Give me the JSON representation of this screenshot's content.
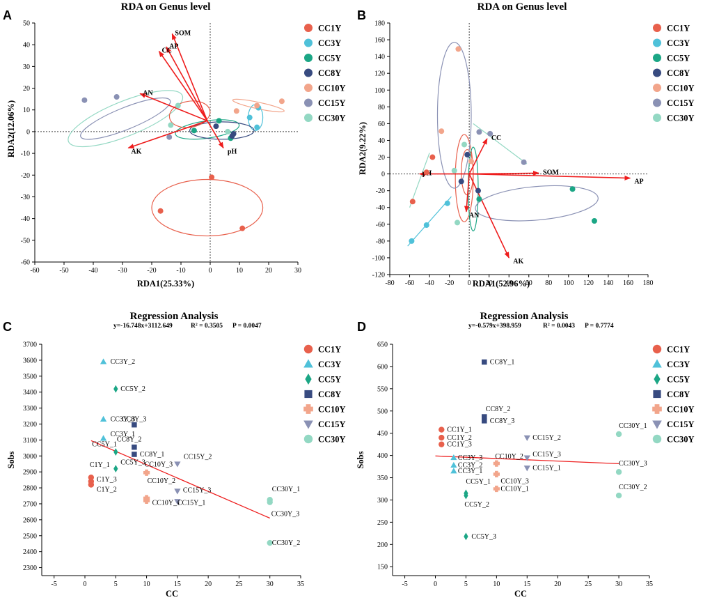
{
  "colors": {
    "CC1Y": "#e8604c",
    "CC3Y": "#4fc1d9",
    "CC5Y": "#1ba685",
    "CC8Y": "#384b80",
    "CC10Y": "#f2a58b",
    "CC15Y": "#8a91b4",
    "CC30Y": "#93d8c3",
    "arrow": "#ee1c1c",
    "fit": "#ee2222"
  },
  "groups": [
    "CC1Y",
    "CC3Y",
    "CC5Y",
    "CC8Y",
    "CC10Y",
    "CC15Y",
    "CC30Y"
  ],
  "chart_data": [
    {
      "panel": "A",
      "type": "scatter",
      "title": "RDA on Genus level",
      "xlabel": "RDA1(25.33%)",
      "ylabel": "RDA2(12.06%)",
      "xlim": [
        -60,
        30
      ],
      "ylim": [
        -60,
        50
      ],
      "xticks": [
        -60,
        -50,
        -40,
        -30,
        -20,
        -10,
        0,
        10,
        20,
        30
      ],
      "yticks": [
        -60,
        -50,
        -40,
        -30,
        -20,
        -10,
        0,
        10,
        20,
        30,
        40,
        50
      ],
      "points": [
        {
          "group": "CC1Y",
          "x": 0.5,
          "y": -21
        },
        {
          "group": "CC1Y",
          "x": -17,
          "y": -36.5
        },
        {
          "group": "CC1Y",
          "x": 11,
          "y": -44.5
        },
        {
          "group": "CC3Y",
          "x": 13.5,
          "y": 6.5
        },
        {
          "group": "CC3Y",
          "x": 16.5,
          "y": 11
        },
        {
          "group": "CC3Y",
          "x": 16,
          "y": 2
        },
        {
          "group": "CC5Y",
          "x": -5.5,
          "y": 0.5
        },
        {
          "group": "CC5Y",
          "x": 3,
          "y": 5
        },
        {
          "group": "CC5Y",
          "x": 7,
          "y": -3
        },
        {
          "group": "CC8Y",
          "x": 2,
          "y": 2.5
        },
        {
          "group": "CC8Y",
          "x": 8,
          "y": -1
        },
        {
          "group": "CC8Y",
          "x": 7.5,
          "y": -2
        },
        {
          "group": "CC10Y",
          "x": 9,
          "y": 9.5
        },
        {
          "group": "CC10Y",
          "x": 16,
          "y": 12
        },
        {
          "group": "CC10Y",
          "x": 24.5,
          "y": 14
        },
        {
          "group": "CC15Y",
          "x": -43,
          "y": 14.5
        },
        {
          "group": "CC15Y",
          "x": -32,
          "y": 16
        },
        {
          "group": "CC15Y",
          "x": -14,
          "y": -2.5
        },
        {
          "group": "CC30Y",
          "x": -11,
          "y": 12
        },
        {
          "group": "CC30Y",
          "x": -13.5,
          "y": 3
        },
        {
          "group": "CC30Y",
          "x": 6,
          "y": 0
        }
      ],
      "ellipses": [
        {
          "group": "CC1Y",
          "cx": -1,
          "cy": -35,
          "rx": 19,
          "ry": 13,
          "angle": 0
        },
        {
          "group": "CC3Y",
          "cx": 15.5,
          "cy": 6.5,
          "rx": 2.5,
          "ry": 6,
          "angle": 0
        },
        {
          "group": "CC5Y",
          "cx": -1,
          "cy": 1,
          "rx": 11,
          "ry": 4,
          "angle": -8
        },
        {
          "group": "CC8Y",
          "cx": 4,
          "cy": 0.5,
          "rx": 11,
          "ry": 4,
          "angle": 0
        },
        {
          "group": "CC10Y",
          "cx": 16.5,
          "cy": 12,
          "rx": 9,
          "ry": 1.5,
          "angle": 12
        },
        {
          "group": "CC15Y",
          "cx": -29,
          "cy": 6,
          "rx": 16.5,
          "ry": 5,
          "angle": -22
        },
        {
          "group": "CC30Y",
          "cx": -29,
          "cy": 6,
          "rx": 21,
          "ry": 8,
          "angle": -22
        },
        {
          "group": "CC1Y",
          "cx": -7,
          "cy": 8,
          "rx": 7,
          "ry": 6,
          "angle": -10
        }
      ],
      "arrows": [
        {
          "label": "SOM",
          "x": -13,
          "y": 45
        },
        {
          "label": "AP",
          "x": -15,
          "y": 39
        },
        {
          "label": "CC",
          "x": -17.5,
          "y": 37
        },
        {
          "label": "AN",
          "x": -24,
          "y": 17.5
        },
        {
          "label": "AK",
          "x": -28,
          "y": -7.5
        },
        {
          "label": "pH",
          "x": 4.5,
          "y": -7.5
        }
      ],
      "arrow_origin": {
        "x": -1,
        "y": 5
      }
    },
    {
      "panel": "B",
      "type": "scatter",
      "title": "RDA on Genus level",
      "xlabel": "RDA1(52.96%)",
      "ylabel": "RDA2(9.22%)",
      "xlim": [
        -80,
        180
      ],
      "ylim": [
        -120,
        180
      ],
      "xticks": [
        -80,
        -60,
        -40,
        -20,
        0,
        20,
        40,
        60,
        80,
        100,
        120,
        140,
        160,
        180
      ],
      "yticks": [
        -120,
        -100,
        -80,
        -60,
        -40,
        -20,
        0,
        20,
        40,
        60,
        80,
        100,
        120,
        140,
        160,
        180
      ],
      "points": [
        {
          "group": "CC1Y",
          "x": -37,
          "y": 20
        },
        {
          "group": "CC1Y",
          "x": -43,
          "y": 2
        },
        {
          "group": "CC1Y",
          "x": -57,
          "y": -33
        },
        {
          "group": "CC3Y",
          "x": -58,
          "y": -80
        },
        {
          "group": "CC3Y",
          "x": -43,
          "y": -61
        },
        {
          "group": "CC3Y",
          "x": -22,
          "y": -35
        },
        {
          "group": "CC5Y",
          "x": 10,
          "y": -30
        },
        {
          "group": "CC5Y",
          "x": 104,
          "y": -18
        },
        {
          "group": "CC5Y",
          "x": 126,
          "y": -56
        },
        {
          "group": "CC8Y",
          "x": -2,
          "y": 23
        },
        {
          "group": "CC8Y",
          "x": -8,
          "y": -9
        },
        {
          "group": "CC8Y",
          "x": 9,
          "y": -20
        },
        {
          "group": "CC10Y",
          "x": -11,
          "y": 149
        },
        {
          "group": "CC10Y",
          "x": -28,
          "y": 51
        },
        {
          "group": "CC10Y",
          "x": 2,
          "y": 15
        },
        {
          "group": "CC15Y",
          "x": 10,
          "y": 50
        },
        {
          "group": "CC15Y",
          "x": 21,
          "y": 48
        },
        {
          "group": "CC15Y",
          "x": 55,
          "y": 14
        },
        {
          "group": "CC30Y",
          "x": -5,
          "y": 35
        },
        {
          "group": "CC30Y",
          "x": -15,
          "y": 4
        },
        {
          "group": "CC30Y",
          "x": -12,
          "y": -58
        }
      ],
      "ellipses": [
        {
          "group": "CC1Y",
          "cx": -5,
          "cy": -5,
          "rx": 9,
          "ry": 52,
          "angle": 0
        },
        {
          "group": "CC1Y",
          "cx": -2,
          "cy": 2,
          "rx": 6,
          "ry": 27,
          "angle": 0
        },
        {
          "group": "CC5Y",
          "cx": 4,
          "cy": -18,
          "rx": 5,
          "ry": 50,
          "angle": 0
        },
        {
          "group": "CC15Y",
          "cx": -15,
          "cy": 70,
          "rx": 17,
          "ry": 87,
          "angle": 0
        },
        {
          "group": "CC15Y",
          "cx": 68,
          "cy": -35,
          "rx": 62,
          "ry": 20,
          "angle": -5
        }
      ],
      "lines": [
        {
          "group": "CC3Y",
          "x1": -62,
          "y1": -86,
          "x2": -18,
          "y2": -27
        },
        {
          "group": "CC30Y",
          "x1": 4,
          "y1": 60,
          "x2": 58,
          "y2": 12
        },
        {
          "group": "CC30Y",
          "x1": -60,
          "y1": -40,
          "x2": -40,
          "y2": 25
        }
      ],
      "arrows": [
        {
          "label": "CC",
          "x": 18,
          "y": 42
        },
        {
          "label": "SOM",
          "x": 70,
          "y": 1
        },
        {
          "label": "AP",
          "x": 162,
          "y": -5
        },
        {
          "label": "pH",
          "x": -50,
          "y": 0
        },
        {
          "label": "AN",
          "x": -3,
          "y": -45
        },
        {
          "label": "AK",
          "x": 40,
          "y": -100
        }
      ],
      "arrow_origin": {
        "x": 0,
        "y": 0
      }
    },
    {
      "panel": "C",
      "type": "scatter",
      "title": "Regression Analysis",
      "equation": "y=-16.748x+3112.649",
      "r2": "R² = 0.3505",
      "p": "P = 0.0047",
      "xlabel": "CC",
      "ylabel": "Sobs",
      "xlim": [
        -7,
        35
      ],
      "ylim": [
        2250,
        3700
      ],
      "xticks": [
        -5,
        0,
        5,
        10,
        15,
        20,
        25,
        30,
        35
      ],
      "yticks": [
        2300,
        2400,
        2500,
        2600,
        2700,
        2800,
        2900,
        3000,
        3100,
        3200,
        3300,
        3400,
        3500,
        3600,
        3700
      ],
      "fit": {
        "slope": -16.748,
        "intercept": 3112.649,
        "x0": 1,
        "x1": 30
      },
      "points": [
        {
          "group": "CC1Y",
          "x": 1,
          "y": 2865,
          "label": "C1Y_1",
          "dx": -2,
          "dy": -15
        },
        {
          "group": "CC1Y",
          "x": 1,
          "y": 2840,
          "label": "C1Y_3",
          "dx": 8,
          "dy": 0
        },
        {
          "group": "CC1Y",
          "x": 1,
          "y": 2820,
          "label": "C1Y_2",
          "dx": 8,
          "dy": 10
        },
        {
          "group": "CC3Y",
          "x": 3,
          "y": 3590,
          "label": "CC3Y_2",
          "dx": 10,
          "dy": 3
        },
        {
          "group": "CC3Y",
          "x": 3,
          "y": 3230,
          "label": "CC3Y_3",
          "dx": 10,
          "dy": 3
        },
        {
          "group": "CC3Y",
          "x": 3,
          "y": 3110,
          "label": "CC3Y_1",
          "dx": 10,
          "dy": -3
        },
        {
          "group": "CC5Y",
          "x": 5,
          "y": 3420,
          "label": "CC5Y_2",
          "dx": 7,
          "dy": 3
        },
        {
          "group": "CC5Y",
          "x": 5,
          "y": 3025,
          "label": "CC5Y_1",
          "dx": -34,
          "dy": -8
        },
        {
          "group": "CC5Y",
          "x": 5,
          "y": 2920,
          "label": "CC5Y_3",
          "dx": 7,
          "dy": -6
        },
        {
          "group": "CC8Y",
          "x": 8,
          "y": 3195,
          "label": "CC8Y_3",
          "dx": -18,
          "dy": -5
        },
        {
          "group": "CC8Y",
          "x": 8,
          "y": 3055,
          "label": "CC8Y_2",
          "dx": -25,
          "dy": -8
        },
        {
          "group": "CC8Y",
          "x": 8,
          "y": 3010,
          "label": "CC8Y_1",
          "dx": 8,
          "dy": 3
        },
        {
          "group": "CC10Y",
          "x": 10,
          "y": 2895,
          "label": "CC10Y_3",
          "dx": -3,
          "dy": -9
        },
        {
          "group": "CC10Y",
          "x": 10,
          "y": 2735,
          "label": "CC10Y_2",
          "dx": 1,
          "dy": -22
        },
        {
          "group": "CC10Y",
          "x": 10,
          "y": 2720,
          "label": "CC10Y_1",
          "dx": 8,
          "dy": 6
        },
        {
          "group": "CC15Y",
          "x": 15,
          "y": 2950,
          "label": "CC15Y_2",
          "dx": 9,
          "dy": -7
        },
        {
          "group": "CC15Y",
          "x": 15,
          "y": 2780,
          "label": "CC15Y_3",
          "dx": 8,
          "dy": 2
        },
        {
          "group": "CC15Y",
          "x": 15,
          "y": 2715,
          "label": "CC15Y_1",
          "dx": 0,
          "dy": 5
        },
        {
          "group": "CC30Y",
          "x": 30,
          "y": 2725,
          "label": "CC30Y_1",
          "dx": 3,
          "dy": -12
        },
        {
          "group": "CC30Y",
          "x": 30,
          "y": 2710,
          "label": "CC30Y_3",
          "dx": 2,
          "dy": 20
        },
        {
          "group": "CC30Y",
          "x": 30,
          "y": 2455,
          "label": "CC30Y_2",
          "dx": 3,
          "dy": 3
        }
      ]
    },
    {
      "panel": "D",
      "type": "scatter",
      "title": "Regression Analysis",
      "equation": "y=-0.579x+398.959",
      "r2": "R² = 0.0043",
      "p": "P = 0.7774",
      "xlabel": "CC",
      "ylabel": "Sobs",
      "xlim": [
        -7,
        35
      ],
      "ylim": [
        130,
        650
      ],
      "xticks": [
        -5,
        0,
        5,
        10,
        15,
        20,
        25,
        30,
        35
      ],
      "yticks": [
        150,
        200,
        250,
        300,
        350,
        400,
        450,
        500,
        550,
        600,
        650
      ],
      "fit": {
        "slope": -0.579,
        "intercept": 398.959,
        "x0": 0,
        "x1": 30
      },
      "points": [
        {
          "group": "CC1Y",
          "x": 1,
          "y": 458,
          "label": "CC1Y_1",
          "dx": 8,
          "dy": 3
        },
        {
          "group": "CC1Y",
          "x": 1,
          "y": 440,
          "label": "CC1Y_2",
          "dx": 8,
          "dy": 3
        },
        {
          "group": "CC1Y",
          "x": 1,
          "y": 425,
          "label": "CC1Y_3",
          "dx": 8,
          "dy": 3
        },
        {
          "group": "CC3Y",
          "x": 3,
          "y": 395,
          "label": "CC3Y_3",
          "dx": 6,
          "dy": 3
        },
        {
          "group": "CC3Y",
          "x": 3,
          "y": 378,
          "label": "CC3Y_2",
          "dx": 6,
          "dy": 3
        },
        {
          "group": "CC3Y",
          "x": 3,
          "y": 365,
          "label": "CC3Y_1",
          "dx": 6,
          "dy": 3
        },
        {
          "group": "CC5Y",
          "x": 5,
          "y": 310,
          "label": "CC5Y_2",
          "dx": -2,
          "dy": 16
        },
        {
          "group": "CC5Y",
          "x": 5,
          "y": 218,
          "label": "CC5Y_3",
          "dx": 8,
          "dy": 3
        },
        {
          "group": "CC5Y",
          "x": 5,
          "y": 315,
          "label": "CC5Y_1",
          "dx": 0,
          "dy": -14
        },
        {
          "group": "CC8Y",
          "x": 8,
          "y": 610,
          "label": "CC8Y_1",
          "dx": 8,
          "dy": 3
        },
        {
          "group": "CC8Y",
          "x": 8,
          "y": 487,
          "label": "CC8Y_2",
          "dx": 2,
          "dy": -8
        },
        {
          "group": "CC8Y",
          "x": 8,
          "y": 478,
          "label": "CC8Y_3",
          "dx": 8,
          "dy": 3
        },
        {
          "group": "CC10Y",
          "x": 10,
          "y": 382,
          "label": "CC10Y_2",
          "dx": -2,
          "dy": -7
        },
        {
          "group": "CC10Y",
          "x": 10,
          "y": 358,
          "label": "CC10Y_3",
          "dx": 6,
          "dy": 13
        },
        {
          "group": "CC10Y",
          "x": 10,
          "y": 325,
          "label": "CC10Y_1",
          "dx": 6,
          "dy": 3
        },
        {
          "group": "CC15Y",
          "x": 15,
          "y": 440,
          "label": "CC15Y_2",
          "dx": 8,
          "dy": 3
        },
        {
          "group": "CC15Y",
          "x": 15,
          "y": 395,
          "label": "CC15Y_3",
          "dx": 8,
          "dy": -2
        },
        {
          "group": "CC15Y",
          "x": 15,
          "y": 372,
          "label": "CC15Y_1",
          "dx": 8,
          "dy": 3
        },
        {
          "group": "CC30Y",
          "x": 30,
          "y": 448,
          "label": "CC30Y_1",
          "dx": 0,
          "dy": -9
        },
        {
          "group": "CC30Y",
          "x": 30,
          "y": 363,
          "label": "CC30Y_3",
          "dx": 0,
          "dy": -9
        },
        {
          "group": "CC30Y",
          "x": 30,
          "y": 310,
          "label": "CC30Y_2",
          "dx": 0,
          "dy": -9
        }
      ]
    }
  ],
  "marker_shapes": {
    "CC1Y": "circle",
    "CC3Y": "triangle",
    "CC5Y": "diamond",
    "CC8Y": "square",
    "CC10Y": "cross",
    "CC15Y": "inverted-triangle",
    "CC30Y": "circle"
  }
}
